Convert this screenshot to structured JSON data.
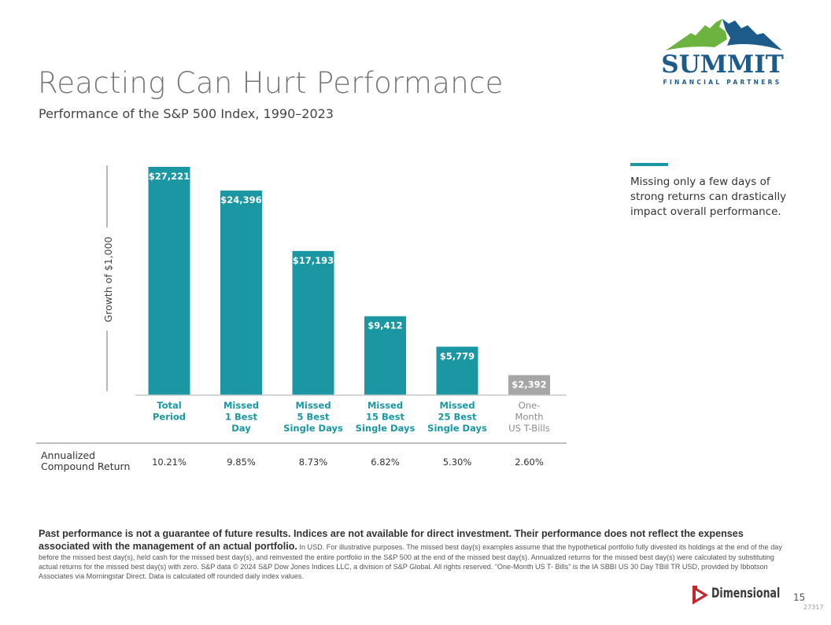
{
  "brand": {
    "name": "SUMMIT",
    "tagline": "FINANCIAL PARTNERS",
    "colors": {
      "green": "#6cb33f",
      "blue": "#1d5b8a"
    }
  },
  "header": {
    "title": "Reacting Can Hurt Performance",
    "subtitle": "Performance of the S&P 500 Index, 1990–2023"
  },
  "side_note": {
    "text": "Missing only a few days of strong returns can drastically impact overall performance.",
    "accent_color": "#1a97a3"
  },
  "chart_data": {
    "type": "bar",
    "title": "Performance of the S&P 500 Index, 1990–2023",
    "xlabel": "",
    "ylabel": "Growth of $1,000",
    "categories": [
      [
        "Total",
        "Period"
      ],
      [
        "Missed",
        "1 Best",
        "Day"
      ],
      [
        "Missed",
        "5 Best",
        "Single Days"
      ],
      [
        "Missed",
        "15 Best",
        "Single Days"
      ],
      [
        "Missed",
        "25 Best",
        "Single Days"
      ],
      [
        "One-",
        "Month",
        "US T-Bills"
      ]
    ],
    "values": [
      27221,
      24396,
      17193,
      9412,
      5779,
      2392
    ],
    "data_labels": [
      "$27,221",
      "$24,396",
      "$17,193",
      "$9,412",
      "$5,779",
      "$2,392"
    ],
    "bar_colors": [
      "#1a97a3",
      "#1a97a3",
      "#1a97a3",
      "#1a97a3",
      "#1a97a3",
      "#a6a6a6"
    ],
    "label_colors": [
      "#1a97a3",
      "#1a97a3",
      "#1a97a3",
      "#1a97a3",
      "#1a97a3",
      "#8c8c8c"
    ],
    "ylim": [
      0,
      27221
    ],
    "grid": false,
    "legend": "none",
    "table": {
      "row_label": "Annualized Compound Return",
      "values": [
        "10.21%",
        "9.85%",
        "8.73%",
        "6.82%",
        "5.30%",
        "2.60%"
      ]
    }
  },
  "disclaimer": {
    "bold": "Past performance is not a guarantee of future results. Indices are not available for direct investment. Their performance does not reflect the expenses associated with the management of an actual portfolio.",
    "body": "In USD. For illustrative purposes. The missed best day(s) examples assume that the hypothetical portfolio fully divested its holdings at the end of the day before the missed best day(s), held cash for the missed best day(s), and reinvested the entire portfolio in the S&P 500 at the end of the missed best day(s). Annualized returns for the missed best day(s) were calculated by substituting actual returns for the missed best day(s) with zero. S&P data © 2024 S&P Dow Jones Indices LLC, a division of S&P Global. All rights reserved. “One-Month US T- Bills” is the IA SBBI US 30 Day TBill TR USD, provided by Ibbotson Associates via Morningstar Direct. Data is calculated off rounded daily index values."
  },
  "footer": {
    "company": "Dimensional",
    "page_number": "15",
    "doc_id": "27317",
    "logo_color": "#c1272d"
  }
}
